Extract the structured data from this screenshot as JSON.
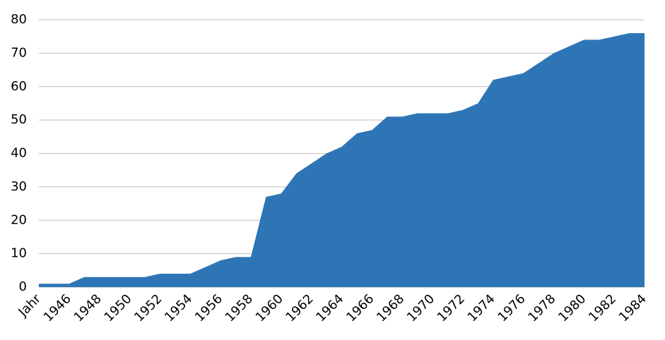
{
  "chart_data": {
    "type": "area",
    "categories": [
      "Jahr",
      null,
      "1946",
      null,
      "1948",
      null,
      "1950",
      null,
      "1952",
      null,
      "1954",
      null,
      "1956",
      null,
      "1958",
      null,
      "1960",
      null,
      "1962",
      null,
      "1964",
      null,
      "1966",
      null,
      "1968",
      null,
      "1970",
      null,
      "1972",
      null,
      "1974",
      null,
      "1976",
      null,
      "1978",
      null,
      "1980",
      null,
      "1982",
      null,
      "1984"
    ],
    "values": [
      1,
      1,
      1,
      3,
      3,
      3,
      3,
      3,
      4,
      4,
      4,
      6,
      8,
      9,
      9,
      27,
      28,
      34,
      37,
      40,
      42,
      46,
      47,
      51,
      51,
      52,
      52,
      52,
      53,
      55,
      62,
      63,
      64,
      67,
      70,
      72,
      74,
      74,
      75,
      76,
      76
    ],
    "color": "#2e75b6",
    "ylim": [
      0,
      80
    ],
    "yticks": [
      0,
      10,
      20,
      30,
      40,
      50,
      60,
      70,
      80
    ],
    "grid": true
  }
}
